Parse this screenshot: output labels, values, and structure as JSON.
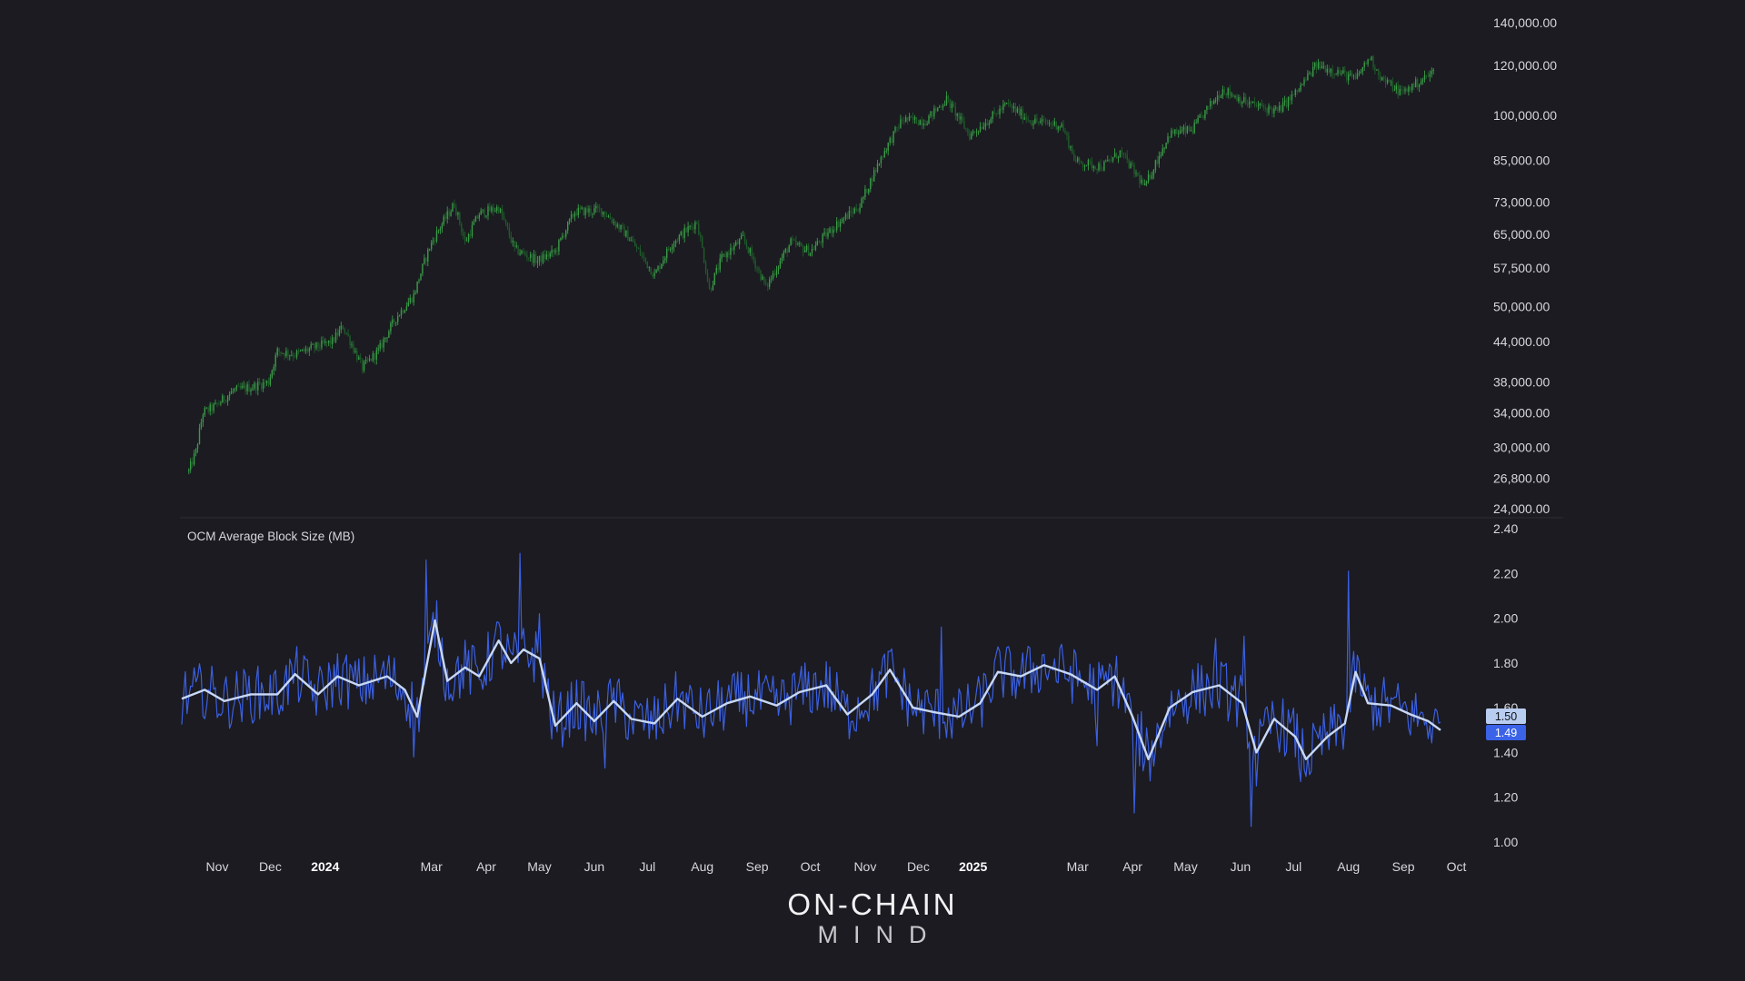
{
  "chart_data": [
    {
      "type": "candlestick",
      "scale": "log",
      "ylim": [
        24000,
        140000
      ],
      "y_ticks": [
        "140,000.00",
        "120,000.00",
        "100,000.00",
        "85,000.00",
        "73,000.00",
        "65,000.00",
        "57,500.00",
        "50,000.00",
        "44,000.00",
        "38,000.00",
        "34,000.00",
        "30,000.00",
        "26,800.00",
        "24,000.00"
      ],
      "y_tick_values": [
        140000,
        120000,
        100000,
        85000,
        73000,
        65000,
        57500,
        50000,
        44000,
        38000,
        34000,
        30000,
        26800,
        24000
      ],
      "colors": {
        "up": "#3a9b47",
        "down": "#1f5c2a"
      },
      "price_path": [
        [
          "2023-10-16",
          27500
        ],
        [
          "2023-10-20",
          29500
        ],
        [
          "2023-10-24",
          34000
        ],
        [
          "2023-10-31",
          34800
        ],
        [
          "2023-11-10",
          36800
        ],
        [
          "2023-11-20",
          37300
        ],
        [
          "2023-11-30",
          38000
        ],
        [
          "2023-12-05",
          42500
        ],
        [
          "2023-12-15",
          42000
        ],
        [
          "2023-12-25",
          43000
        ],
        [
          "2024-01-05",
          44000
        ],
        [
          "2024-01-11",
          46500
        ],
        [
          "2024-01-22",
          40000
        ],
        [
          "2024-01-31",
          42500
        ],
        [
          "2024-02-10",
          48000
        ],
        [
          "2024-02-20",
          52000
        ],
        [
          "2024-02-29",
          62000
        ],
        [
          "2024-03-05",
          66000
        ],
        [
          "2024-03-14",
          72500
        ],
        [
          "2024-03-20",
          63000
        ],
        [
          "2024-03-28",
          70000
        ],
        [
          "2024-04-08",
          71500
        ],
        [
          "2024-04-17",
          61500
        ],
        [
          "2024-04-30",
          59000
        ],
        [
          "2024-05-10",
          61000
        ],
        [
          "2024-05-21",
          70500
        ],
        [
          "2024-06-05",
          71000
        ],
        [
          "2024-06-20",
          64500
        ],
        [
          "2024-07-05",
          56000
        ],
        [
          "2024-07-15",
          63000
        ],
        [
          "2024-07-29",
          68000
        ],
        [
          "2024-08-05",
          53000
        ],
        [
          "2024-08-12",
          59500
        ],
        [
          "2024-08-24",
          64000
        ],
        [
          "2024-09-06",
          53500
        ],
        [
          "2024-09-20",
          63000
        ],
        [
          "2024-10-01",
          61000
        ],
        [
          "2024-10-15",
          67000
        ],
        [
          "2024-10-29",
          72000
        ],
        [
          "2024-11-12",
          88000
        ],
        [
          "2024-11-22",
          98500
        ],
        [
          "2024-12-05",
          98000
        ],
        [
          "2024-12-17",
          106000
        ],
        [
          "2024-12-30",
          93000
        ],
        [
          "2025-01-07",
          97000
        ],
        [
          "2025-01-20",
          104000
        ],
        [
          "2025-02-03",
          98000
        ],
        [
          "2025-02-20",
          96500
        ],
        [
          "2025-02-28",
          84500
        ],
        [
          "2025-03-15",
          83000
        ],
        [
          "2025-03-25",
          87500
        ],
        [
          "2025-04-08",
          77000
        ],
        [
          "2025-04-22",
          93500
        ],
        [
          "2025-05-05",
          95000
        ],
        [
          "2025-05-22",
          110000
        ],
        [
          "2025-06-05",
          104500
        ],
        [
          "2025-06-22",
          101500
        ],
        [
          "2025-07-03",
          109000
        ],
        [
          "2025-07-14",
          120000
        ],
        [
          "2025-07-25",
          117500
        ],
        [
          "2025-08-05",
          114000
        ],
        [
          "2025-08-13",
          123500
        ],
        [
          "2025-08-20",
          114000
        ],
        [
          "2025-08-31",
          108500
        ],
        [
          "2025-09-10",
          113000
        ],
        [
          "2025-09-18",
          117000
        ]
      ]
    },
    {
      "type": "line",
      "title": "OCM Average Block Size (MB)",
      "ylim": [
        1.0,
        2.4
      ],
      "y_ticks": [
        "2.40",
        "2.20",
        "2.00",
        "1.80",
        "1.60",
        "1.40",
        "1.20",
        "1.00"
      ],
      "y_tick_values": [
        2.4,
        2.2,
        2.0,
        1.8,
        1.6,
        1.4,
        1.2,
        1.0
      ],
      "series": [
        {
          "role": "daily",
          "color": "#3b5fe0",
          "last_value": "1.49",
          "spikes": [
            [
              "2024-02-27",
              2.26
            ],
            [
              "2024-02-20",
              1.38
            ],
            [
              "2024-04-20",
              2.29
            ],
            [
              "2024-05-01",
              2.02
            ],
            [
              "2024-05-08",
              1.46
            ],
            [
              "2024-06-07",
              1.33
            ],
            [
              "2025-04-02",
              1.13
            ],
            [
              "2025-04-05",
              1.34
            ],
            [
              "2025-05-18",
              1.91
            ],
            [
              "2025-06-03",
              1.92
            ],
            [
              "2025-06-07",
              1.07
            ],
            [
              "2025-06-10",
              1.25
            ],
            [
              "2025-08-01",
              2.21
            ],
            [
              "2025-07-05",
              1.27
            ],
            [
              "2025-03-12",
              1.43
            ],
            [
              "2024-12-14",
              1.96
            ]
          ]
        },
        {
          "role": "smoothed",
          "color": "#c8d8f5",
          "last_value": "1.50",
          "path": [
            [
              "2023-10-12",
              1.64
            ],
            [
              "2023-10-25",
              1.68
            ],
            [
              "2023-11-05",
              1.63
            ],
            [
              "2023-11-20",
              1.66
            ],
            [
              "2023-12-05",
              1.66
            ],
            [
              "2023-12-15",
              1.75
            ],
            [
              "2023-12-28",
              1.66
            ],
            [
              "2024-01-08",
              1.74
            ],
            [
              "2024-01-20",
              1.7
            ],
            [
              "2024-02-05",
              1.74
            ],
            [
              "2024-02-15",
              1.68
            ],
            [
              "2024-02-22",
              1.56
            ],
            [
              "2024-03-03",
              1.99
            ],
            [
              "2024-03-10",
              1.72
            ],
            [
              "2024-03-20",
              1.78
            ],
            [
              "2024-03-28",
              1.74
            ],
            [
              "2024-04-08",
              1.9
            ],
            [
              "2024-04-15",
              1.8
            ],
            [
              "2024-04-22",
              1.86
            ],
            [
              "2024-05-01",
              1.82
            ],
            [
              "2024-05-10",
              1.52
            ],
            [
              "2024-05-22",
              1.62
            ],
            [
              "2024-06-01",
              1.54
            ],
            [
              "2024-06-12",
              1.63
            ],
            [
              "2024-06-22",
              1.55
            ],
            [
              "2024-07-05",
              1.53
            ],
            [
              "2024-07-18",
              1.64
            ],
            [
              "2024-08-01",
              1.56
            ],
            [
              "2024-08-15",
              1.62
            ],
            [
              "2024-08-28",
              1.65
            ],
            [
              "2024-09-12",
              1.61
            ],
            [
              "2024-09-25",
              1.67
            ],
            [
              "2024-10-10",
              1.7
            ],
            [
              "2024-10-22",
              1.57
            ],
            [
              "2024-11-05",
              1.66
            ],
            [
              "2024-11-15",
              1.77
            ],
            [
              "2024-11-28",
              1.6
            ],
            [
              "2024-12-10",
              1.58
            ],
            [
              "2024-12-24",
              1.56
            ],
            [
              "2025-01-05",
              1.62
            ],
            [
              "2025-01-15",
              1.76
            ],
            [
              "2025-01-28",
              1.74
            ],
            [
              "2025-02-10",
              1.79
            ],
            [
              "2025-02-25",
              1.75
            ],
            [
              "2025-03-12",
              1.68
            ],
            [
              "2025-03-22",
              1.74
            ],
            [
              "2025-04-01",
              1.56
            ],
            [
              "2025-04-10",
              1.37
            ],
            [
              "2025-04-22",
              1.6
            ],
            [
              "2025-05-05",
              1.67
            ],
            [
              "2025-05-20",
              1.7
            ],
            [
              "2025-06-02",
              1.62
            ],
            [
              "2025-06-10",
              1.4
            ],
            [
              "2025-06-20",
              1.55
            ],
            [
              "2025-07-02",
              1.47
            ],
            [
              "2025-07-08",
              1.37
            ],
            [
              "2025-07-20",
              1.47
            ],
            [
              "2025-07-30",
              1.53
            ],
            [
              "2025-08-05",
              1.76
            ],
            [
              "2025-08-12",
              1.62
            ],
            [
              "2025-08-25",
              1.61
            ],
            [
              "2025-09-05",
              1.57
            ],
            [
              "2025-09-15",
              1.54
            ],
            [
              "2025-09-22",
              1.5
            ]
          ]
        }
      ]
    }
  ],
  "x_axis": {
    "labels": [
      {
        "text": "Nov",
        "bold": false
      },
      {
        "text": "Dec",
        "bold": false
      },
      {
        "text": "2024",
        "bold": true
      },
      {
        "text": "Mar",
        "bold": false
      },
      {
        "text": "Apr",
        "bold": false
      },
      {
        "text": "May",
        "bold": false
      },
      {
        "text": "Jun",
        "bold": false
      },
      {
        "text": "Jul",
        "bold": false
      },
      {
        "text": "Aug",
        "bold": false
      },
      {
        "text": "Sep",
        "bold": false
      },
      {
        "text": "Oct",
        "bold": false
      },
      {
        "text": "Nov",
        "bold": false
      },
      {
        "text": "Dec",
        "bold": false
      },
      {
        "text": "2025",
        "bold": true
      },
      {
        "text": "Mar",
        "bold": false
      },
      {
        "text": "Apr",
        "bold": false
      },
      {
        "text": "May",
        "bold": false
      },
      {
        "text": "Jun",
        "bold": false
      },
      {
        "text": "Jul",
        "bold": false
      },
      {
        "text": "Aug",
        "bold": false
      },
      {
        "text": "Sep",
        "bold": false
      },
      {
        "text": "Oct",
        "bold": false
      }
    ],
    "dates": [
      "2023-11-01",
      "2023-12-01",
      "2024-01-01",
      "2024-03-01",
      "2024-04-01",
      "2024-05-01",
      "2024-06-01",
      "2024-07-01",
      "2024-08-01",
      "2024-09-01",
      "2024-10-01",
      "2024-11-01",
      "2024-12-01",
      "2025-01-01",
      "2025-03-01",
      "2025-04-01",
      "2025-05-01",
      "2025-06-01",
      "2025-07-01",
      "2025-08-01",
      "2025-09-01",
      "2025-10-01"
    ]
  },
  "branding": {
    "line1": "ON-CHAIN",
    "line2": "MIND"
  }
}
